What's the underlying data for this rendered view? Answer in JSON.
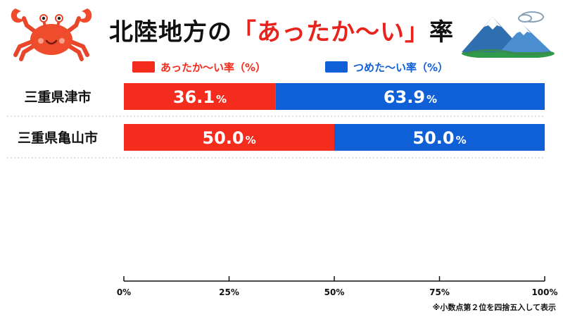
{
  "title": {
    "prefix": "北陸地方の",
    "highlight": "「あったか〜い」",
    "suffix": "率"
  },
  "legend": {
    "warm": "あったか〜い率（%）",
    "cold": "つめた〜い率（%）"
  },
  "colors": {
    "warm": "#f42c1e",
    "cold": "#0f5fd6",
    "title_highlight": "#e8231c"
  },
  "icons": [
    "crab-icon",
    "mountain-icon"
  ],
  "chart_data": {
    "type": "bar",
    "stacked": true,
    "orientation": "horizontal",
    "categories": [
      "三重県津市",
      "三重県亀山市"
    ],
    "series": [
      {
        "name": "あったか〜い率（%）",
        "values": [
          36.1,
          50.0
        ]
      },
      {
        "name": "つめた〜い率（%）",
        "values": [
          63.9,
          50.0
        ]
      }
    ],
    "data_labels": [
      [
        "36.1",
        "50.0"
      ],
      [
        "63.9",
        "50.0"
      ]
    ],
    "xlim": [
      0,
      100
    ],
    "x_ticks": [
      "0%",
      "25%",
      "50%",
      "75%",
      "100%"
    ],
    "legend_position": "top",
    "grid": false
  },
  "footnote": "※小数点第２位を四捨五入して表示"
}
